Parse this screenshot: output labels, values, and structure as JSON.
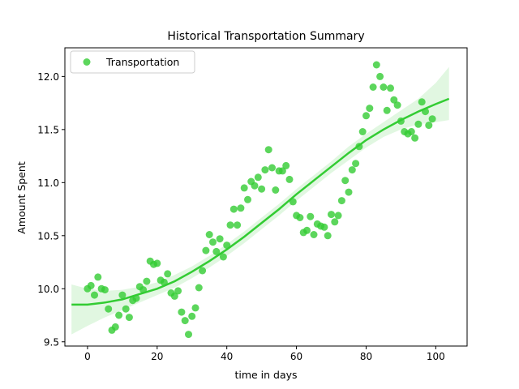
{
  "chart_data": {
    "type": "scatter",
    "title": "Historical Transportation Summary",
    "xlabel": "time in days",
    "ylabel": "Amount Spent",
    "xlim": [
      -6.5,
      109
    ],
    "ylim": [
      9.46,
      12.27
    ],
    "xticks": [
      0,
      20,
      40,
      60,
      80,
      100
    ],
    "yticks": [
      9.5,
      10.0,
      10.5,
      11.0,
      11.5,
      12.0
    ],
    "ytick_labels": [
      "9.5",
      "10.0",
      "10.5",
      "11.0",
      "11.5",
      "12.0"
    ],
    "grid": false,
    "legend_position": "top-left",
    "color": "#33cc33",
    "series": [
      {
        "name": "Transportation",
        "x": [
          0,
          1,
          2,
          3,
          4,
          5,
          6,
          7,
          8,
          9,
          10,
          11,
          12,
          13,
          14,
          15,
          16,
          17,
          18,
          19,
          20,
          21,
          22,
          23,
          24,
          25,
          26,
          27,
          28,
          29,
          30,
          31,
          32,
          33,
          34,
          35,
          36,
          37,
          38,
          39,
          40,
          41,
          42,
          43,
          44,
          45,
          46,
          47,
          48,
          49,
          50,
          51,
          52,
          53,
          54,
          55,
          56,
          57,
          58,
          59,
          60,
          61,
          62,
          63,
          64,
          65,
          66,
          67,
          68,
          69,
          70,
          71,
          72,
          73,
          74,
          75,
          76,
          77,
          78,
          79,
          80,
          81,
          82,
          83,
          84,
          85,
          86,
          87,
          88,
          89,
          90,
          91,
          92,
          93,
          94,
          95,
          96,
          97,
          98,
          99
        ],
        "y": [
          10.0,
          10.03,
          9.94,
          10.11,
          10.0,
          9.99,
          9.81,
          9.61,
          9.64,
          9.75,
          9.94,
          9.81,
          9.73,
          9.89,
          9.91,
          10.02,
          9.99,
          10.07,
          10.26,
          10.23,
          10.24,
          10.08,
          10.06,
          10.14,
          9.96,
          9.93,
          9.98,
          9.78,
          9.7,
          9.57,
          9.74,
          9.82,
          10.01,
          10.17,
          10.36,
          10.51,
          10.44,
          10.35,
          10.47,
          10.3,
          10.41,
          10.6,
          10.75,
          10.6,
          10.76,
          10.95,
          10.84,
          11.01,
          10.97,
          11.05,
          10.94,
          11.12,
          11.31,
          11.14,
          10.93,
          11.11,
          11.11,
          11.16,
          11.03,
          10.82,
          10.69,
          10.67,
          10.53,
          10.55,
          10.68,
          10.51,
          10.61,
          10.59,
          10.58,
          10.5,
          10.7,
          10.63,
          10.69,
          10.83,
          11.02,
          10.91,
          11.12,
          11.18,
          11.34,
          11.48,
          11.63,
          11.7,
          11.9,
          12.11,
          12.0,
          11.9,
          11.68,
          11.89,
          11.78,
          11.73,
          11.58,
          11.48,
          11.46,
          11.48,
          11.42,
          11.55,
          11.76,
          11.67,
          11.54,
          11.6
        ]
      }
    ],
    "regression": {
      "x": [
        -4.6,
        0,
        5,
        10,
        15,
        20,
        25,
        30,
        35,
        40,
        45,
        50,
        55,
        60,
        65,
        70,
        75,
        80,
        85,
        90,
        95,
        100,
        103.8
      ],
      "y": [
        9.85,
        9.85,
        9.87,
        9.9,
        9.95,
        10.0,
        10.07,
        10.16,
        10.26,
        10.37,
        10.49,
        10.62,
        10.75,
        10.89,
        11.02,
        11.15,
        11.28,
        11.4,
        11.5,
        11.59,
        11.67,
        11.74,
        11.79
      ],
      "ci_upper": [
        10.04,
        10.0,
        9.98,
        9.99,
        10.02,
        10.06,
        10.13,
        10.21,
        10.31,
        10.42,
        10.54,
        10.67,
        10.8,
        10.94,
        11.07,
        11.2,
        11.34,
        11.46,
        11.57,
        11.68,
        11.79,
        11.94,
        12.09
      ],
      "ci_lower": [
        9.57,
        9.65,
        9.73,
        9.8,
        9.87,
        9.94,
        10.01,
        10.1,
        10.2,
        10.31,
        10.43,
        10.56,
        10.69,
        10.83,
        10.96,
        11.09,
        11.21,
        11.33,
        11.43,
        11.5,
        11.55,
        11.57,
        11.59
      ]
    }
  }
}
